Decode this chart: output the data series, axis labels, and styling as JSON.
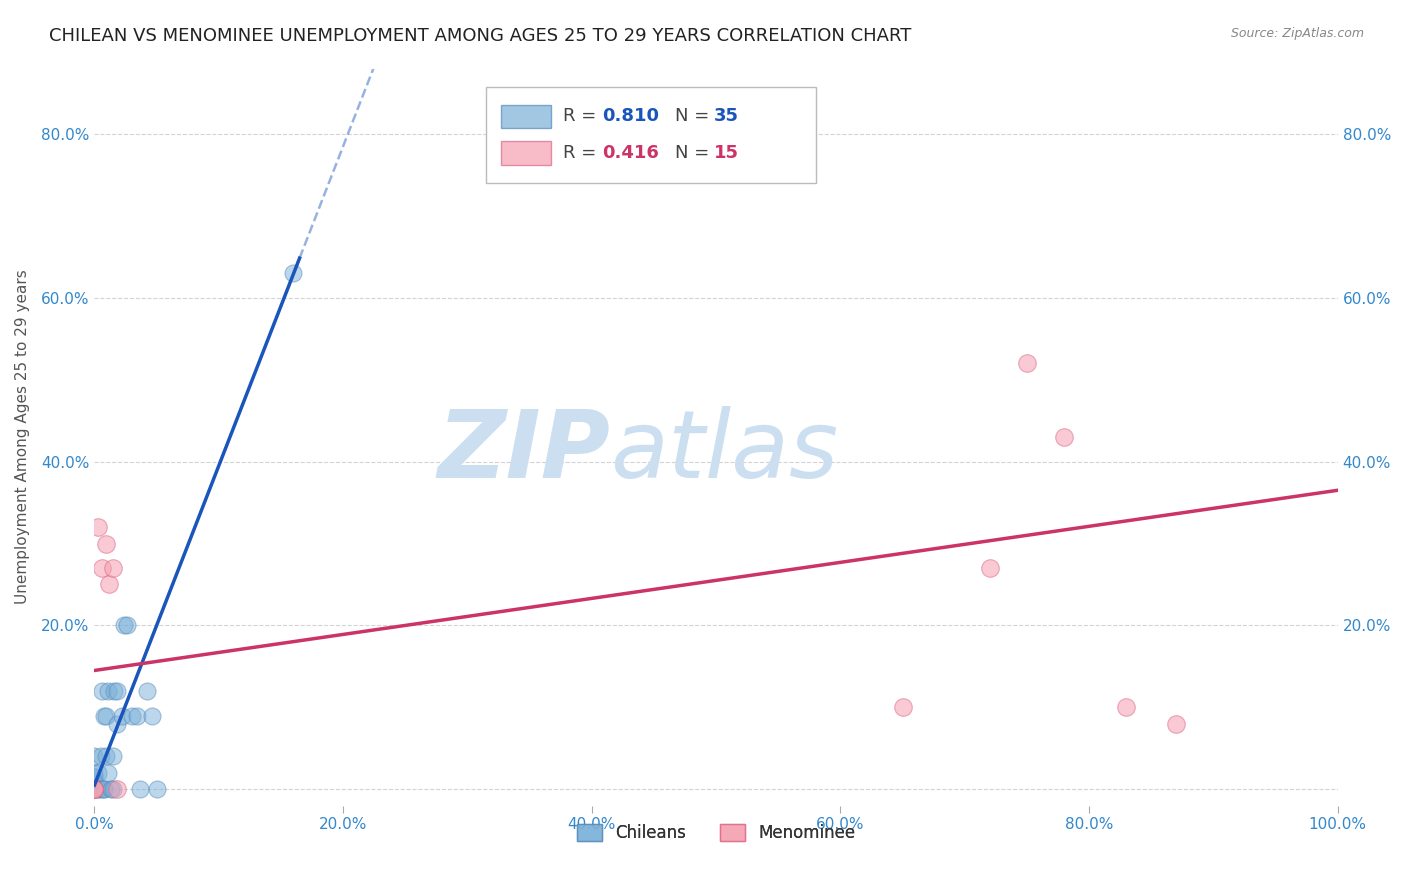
{
  "title": "CHILEAN VS MENOMINEE UNEMPLOYMENT AMONG AGES 25 TO 29 YEARS CORRELATION CHART",
  "source": "Source: ZipAtlas.com",
  "ylabel": "Unemployment Among Ages 25 to 29 years",
  "xlim": [
    0.0,
    1.0
  ],
  "ylim": [
    -0.02,
    0.88
  ],
  "xticks": [
    0.0,
    0.2,
    0.4,
    0.6,
    0.8,
    1.0
  ],
  "xtick_labels": [
    "0.0%",
    "20.0%",
    "40.0%",
    "60.0%",
    "80.0%",
    "100.0%"
  ],
  "ytick_positions": [
    0.0,
    0.2,
    0.4,
    0.6,
    0.8
  ],
  "ytick_labels": [
    "",
    "20.0%",
    "40.0%",
    "60.0%",
    "80.0%"
  ],
  "background_color": "#ffffff",
  "watermark_zip": "ZIP",
  "watermark_atlas": "atlas",
  "watermark_color": "#ccdff0",
  "chileans_x": [
    0.0,
    0.0,
    0.0,
    0.0,
    0.0,
    0.0,
    0.003,
    0.003,
    0.003,
    0.005,
    0.005,
    0.006,
    0.008,
    0.008,
    0.008,
    0.009,
    0.009,
    0.011,
    0.011,
    0.013,
    0.015,
    0.015,
    0.016,
    0.018,
    0.018,
    0.022,
    0.024,
    0.026,
    0.03,
    0.034,
    0.037,
    0.042,
    0.046,
    0.05,
    0.16
  ],
  "chileans_y": [
    0.0,
    0.0,
    0.015,
    0.015,
    0.02,
    0.04,
    0.0,
    0.0,
    0.02,
    0.0,
    0.04,
    0.12,
    0.0,
    0.0,
    0.09,
    0.04,
    0.09,
    0.02,
    0.12,
    0.0,
    0.0,
    0.04,
    0.12,
    0.08,
    0.12,
    0.09,
    0.2,
    0.2,
    0.09,
    0.09,
    0.0,
    0.12,
    0.09,
    0.0,
    0.63
  ],
  "menominee_x": [
    0.0,
    0.0,
    0.0,
    0.003,
    0.006,
    0.009,
    0.012,
    0.015,
    0.018,
    0.65,
    0.72,
    0.75,
    0.78,
    0.83,
    0.87
  ],
  "menominee_y": [
    0.0,
    0.0,
    0.0,
    0.32,
    0.27,
    0.3,
    0.25,
    0.27,
    0.0,
    0.1,
    0.27,
    0.52,
    0.43,
    0.1,
    0.08
  ],
  "chileans_color": "#7ab0d8",
  "menominee_color": "#f5a0b0",
  "chileans_edge_color": "#5588bb",
  "menominee_edge_color": "#dd6688",
  "chileans_line_color": "#1a55bb",
  "menominee_line_color": "#cc3366",
  "blue_line_slope": 3.9,
  "blue_line_intercept": 0.005,
  "blue_line_solid_end": 0.165,
  "blue_line_dash_end": 0.42,
  "pink_line_slope": 0.22,
  "pink_line_intercept": 0.145,
  "legend_r1": "0.810",
  "legend_n1": "35",
  "legend_r2": "0.416",
  "legend_n2": "15",
  "grid_color": "#c8c8c8",
  "axis_color": "#3388cc",
  "title_fontsize": 13,
  "label_fontsize": 11,
  "tick_fontsize": 11,
  "legend_fontsize": 13
}
